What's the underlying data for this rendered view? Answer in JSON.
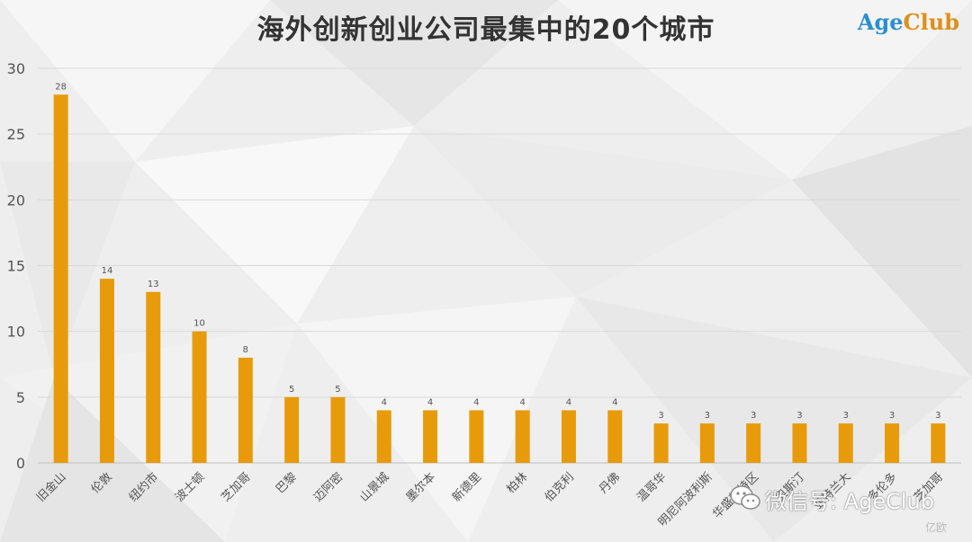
{
  "header": {
    "title": "海外创新创业公司最集中的20个城市",
    "logo_a": "Age",
    "logo_c": "Club"
  },
  "watermark": {
    "text": "微信号: AgeClub",
    "corner": "亿欧"
  },
  "colors": {
    "bar": "#E79B0B",
    "grid": "#d9d9d9",
    "axis_text": "#555555"
  },
  "chart_data": {
    "type": "bar",
    "categories": [
      "旧金山",
      "伦敦",
      "纽约市",
      "波士顿",
      "芝加哥",
      "巴黎",
      "迈阿密",
      "山景城",
      "墨尔本",
      "新德里",
      "柏林",
      "伯克利",
      "丹佛",
      "温哥华",
      "明尼阿波利斯",
      "华盛顿特区",
      "奥斯汀",
      "亚特兰大",
      "多伦多",
      "芝加哥"
    ],
    "values": [
      28,
      14,
      13,
      10,
      8,
      5,
      5,
      4,
      4,
      4,
      4,
      4,
      4,
      3,
      3,
      3,
      3,
      3,
      3,
      3
    ],
    "ylim": [
      0,
      30
    ],
    "yticks": [
      0,
      5,
      10,
      15,
      20,
      25,
      30
    ],
    "grid": true,
    "data_labels": true
  }
}
